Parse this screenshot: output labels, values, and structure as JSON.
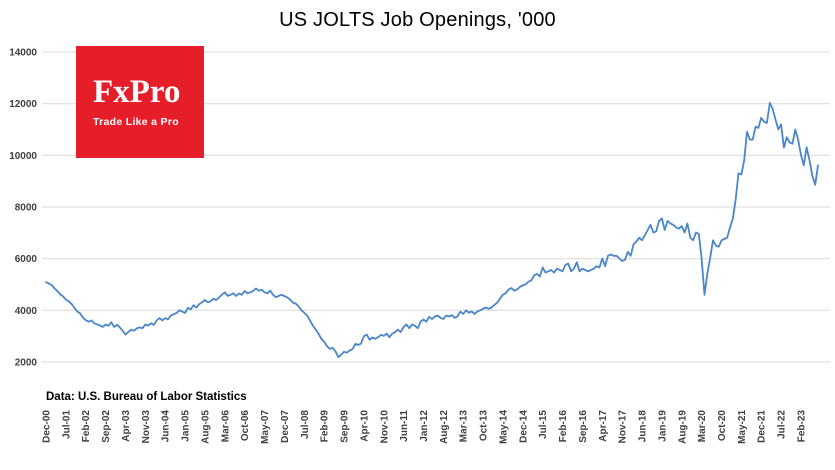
{
  "title": "US JOLTS Job Openings, '000",
  "source_note": "Data: U.S. Bureau of Labor Statistics",
  "logo": {
    "name": "FxPro",
    "tagline": "Trade Like a Pro",
    "bg_color": "#e61e2a",
    "text_color": "#ffffff"
  },
  "chart_data": {
    "type": "line",
    "title": "US JOLTS Job Openings, '000",
    "xlabel": "",
    "ylabel": "",
    "ylim": [
      2000,
      14000
    ],
    "y_ticks": [
      2000,
      4000,
      6000,
      8000,
      10000,
      12000,
      14000
    ],
    "grid": "horizontal",
    "legend": "none",
    "line_color": "#4a86c8",
    "gridline_color": "#d9d9d9",
    "label_color": "#404040",
    "x_tick_every": 7,
    "x_tick_labels": [
      "Dec-00",
      "Jul-01",
      "Feb-02",
      "Sep-02",
      "Apr-03",
      "Nov-03",
      "Jun-04",
      "Jan-05",
      "Aug-05",
      "Mar-06",
      "Oct-06",
      "May-07",
      "Dec-07",
      "Jul-08",
      "Feb-09",
      "Sep-09",
      "Apr-10",
      "Nov-10",
      "Jun-11",
      "Jan-12",
      "Aug-12",
      "Mar-13",
      "Oct-13",
      "May-14",
      "Dec-14",
      "Jul-15",
      "Feb-16",
      "Sep-16",
      "Apr-17",
      "Nov-17",
      "Jun-18",
      "Jan-19",
      "Aug-19",
      "Mar-20",
      "Oct-20",
      "May-21",
      "Dec-21",
      "Jul-22",
      "Feb-23"
    ],
    "series": [
      {
        "name": "US JOLTS Job Openings ('000)",
        "frequency": "monthly",
        "start": "Dec-00",
        "end": "Aug-23",
        "values": [
          5090,
          5040,
          4980,
          4850,
          4740,
          4620,
          4540,
          4410,
          4350,
          4250,
          4100,
          3960,
          3880,
          3720,
          3620,
          3560,
          3610,
          3500,
          3460,
          3410,
          3360,
          3450,
          3400,
          3540,
          3360,
          3440,
          3340,
          3210,
          3060,
          3160,
          3250,
          3210,
          3300,
          3340,
          3310,
          3450,
          3410,
          3500,
          3440,
          3610,
          3700,
          3610,
          3700,
          3650,
          3800,
          3850,
          3900,
          4000,
          3950,
          3900,
          4100,
          4040,
          4200,
          4110,
          4240,
          4310,
          4400,
          4310,
          4350,
          4450,
          4400,
          4500,
          4610,
          4700,
          4560,
          4600,
          4660,
          4560,
          4650,
          4600,
          4750,
          4660,
          4700,
          4750,
          4850,
          4760,
          4800,
          4700,
          4660,
          4760,
          4600,
          4510,
          4560,
          4600,
          4550,
          4500,
          4410,
          4300,
          4260,
          4150,
          4010,
          3900,
          3800,
          3610,
          3410,
          3260,
          3100,
          2900,
          2790,
          2610,
          2510,
          2550,
          2410,
          2190,
          2280,
          2400,
          2360,
          2450,
          2500,
          2700,
          2660,
          2710,
          3000,
          3060,
          2860,
          2950,
          2900,
          2960,
          3050,
          3010,
          3100,
          2960,
          3100,
          3160,
          3250,
          3160,
          3360,
          3450,
          3310,
          3450,
          3400,
          3310,
          3560,
          3650,
          3560,
          3750,
          3660,
          3760,
          3800,
          3710,
          3660,
          3800,
          3760,
          3810,
          3710,
          3760,
          3950,
          3860,
          4000,
          3910,
          3960,
          3860,
          3960,
          4000,
          4060,
          4110,
          4060,
          4110,
          4210,
          4300,
          4460,
          4610,
          4660,
          4810,
          4860,
          4760,
          4810,
          4910,
          4960,
          5010,
          5110,
          5160,
          5360,
          5410,
          5310,
          5660,
          5460,
          5510,
          5560,
          5460,
          5610,
          5560,
          5510,
          5760,
          5810,
          5510,
          5610,
          5860,
          5510,
          5610,
          5560,
          5510,
          5560,
          5610,
          5710,
          5660,
          6010,
          5710,
          6110,
          6160,
          6110,
          6110,
          6010,
          5910,
          5960,
          6260,
          6110,
          6560,
          6660,
          6810,
          6710,
          6910,
          7110,
          7310,
          7010,
          7060,
          7460,
          7560,
          7110,
          7460,
          7360,
          7310,
          7210,
          7160,
          7260,
          7010,
          7360,
          6810,
          6710,
          7010,
          6960,
          6010,
          4600,
          5410,
          6010,
          6710,
          6510,
          6460,
          6710,
          6760,
          6810,
          7210,
          7560,
          8310,
          9310,
          9260,
          9810,
          10910,
          10610,
          10610,
          11110,
          11060,
          11450,
          11300,
          11250,
          12030,
          11800,
          11400,
          11000,
          11200,
          10300,
          10700,
          10500,
          10450,
          11000,
          10610,
          10010,
          9610,
          10310,
          9810,
          9210,
          8860,
          9610
        ]
      }
    ]
  }
}
